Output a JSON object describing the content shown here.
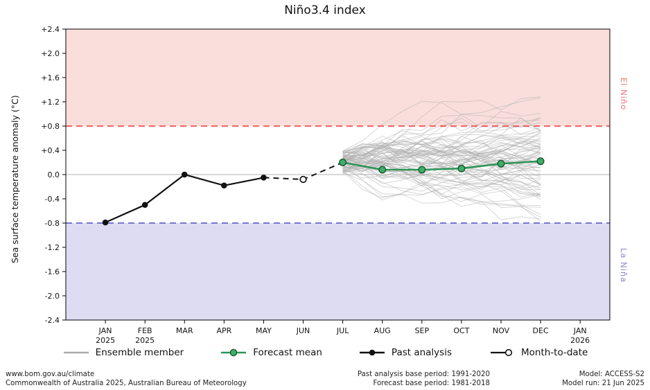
{
  "title": "Niño3.4 index",
  "y_axis_label": "Sea surface temperature anomaly (°C)",
  "region_labels": {
    "el_nino": "El Niño",
    "la_nina": "La Niña"
  },
  "legend": [
    {
      "label": "Ensemble member",
      "type": "ensemble"
    },
    {
      "label": "Forecast mean",
      "type": "forecast"
    },
    {
      "label": "Past analysis",
      "type": "past"
    },
    {
      "label": "Month-to-date",
      "type": "month_to_date"
    }
  ],
  "footer": {
    "left_line1": "www.bom.gov.au/climate",
    "left_line2": "Commonwealth of Australia 2025, Australian Bureau of Meteorology",
    "center_line1": "Past analysis base period: 1991-2020",
    "center_line2": "Forecast base period: 1981-2018",
    "right_line1": "Model: ACCESS-S2",
    "right_line2": "Model run: 21 Jun 2025"
  },
  "chart_data": {
    "type": "line",
    "title": "Niño3.4 index",
    "xlabel": "",
    "ylabel": "Sea surface temperature anomaly (°C)",
    "y_range": [
      -2.4,
      2.4
    ],
    "x_range": [
      -1,
      12.75
    ],
    "grid": false,
    "legend_position": "bottom",
    "thresholds": {
      "el_nino": 0.8,
      "la_nina": -0.8
    },
    "y_ticks": [
      {
        "value": 2.4,
        "label": "+2.4"
      },
      {
        "value": 2.0,
        "label": "+2.0"
      },
      {
        "value": 1.6,
        "label": "+1.6"
      },
      {
        "value": 1.2,
        "label": "+1.2"
      },
      {
        "value": 0.8,
        "label": "+0.8"
      },
      {
        "value": 0.4,
        "label": "+0.4"
      },
      {
        "value": 0.0,
        "label": "0.0"
      },
      {
        "value": -0.4,
        "label": "-0.4"
      },
      {
        "value": -0.8,
        "label": "-0.8"
      },
      {
        "value": -1.2,
        "label": "-1.2"
      },
      {
        "value": -1.6,
        "label": "-1.6"
      },
      {
        "value": -2.0,
        "label": "-2.0"
      },
      {
        "value": -2.4,
        "label": "-2.4"
      }
    ],
    "x_ticks": [
      {
        "x": 0,
        "label": "JAN",
        "year": "2025"
      },
      {
        "x": 1,
        "label": "FEB",
        "year": "2025"
      },
      {
        "x": 2,
        "label": "MAR"
      },
      {
        "x": 3,
        "label": "APR"
      },
      {
        "x": 4,
        "label": "MAY"
      },
      {
        "x": 5,
        "label": "JUN"
      },
      {
        "x": 6,
        "label": "JUL"
      },
      {
        "x": 7,
        "label": "AUG"
      },
      {
        "x": 8,
        "label": "SEP"
      },
      {
        "x": 9,
        "label": "OCT"
      },
      {
        "x": 10,
        "label": "NOV"
      },
      {
        "x": 11,
        "label": "DEC"
      },
      {
        "x": 12,
        "label": "JAN",
        "year": "2026"
      }
    ],
    "series": [
      {
        "name": "Past analysis",
        "type": "past",
        "months": [
          "JAN 2025",
          "FEB 2025",
          "MAR 2025",
          "APR 2025",
          "MAY 2025"
        ],
        "x": [
          0,
          1,
          2,
          3,
          4
        ],
        "values": [
          -0.79,
          -0.5,
          0.0,
          -0.18,
          -0.05
        ]
      },
      {
        "name": "Month-to-date",
        "type": "month_to_date",
        "months": [
          "JUN 2025"
        ],
        "x": [
          5
        ],
        "values": [
          -0.08
        ]
      },
      {
        "name": "Forecast mean",
        "type": "forecast",
        "months": [
          "JUL 2025",
          "AUG 2025",
          "SEP 2025",
          "OCT 2025",
          "NOV 2025",
          "DEC 2025"
        ],
        "x": [
          6,
          7,
          8,
          9,
          10,
          11
        ],
        "values": [
          0.2,
          0.08,
          0.08,
          0.1,
          0.18,
          0.22
        ]
      }
    ],
    "ensemble": {
      "name": "Ensemble member",
      "count": 80,
      "seed": 42,
      "x_start": 6,
      "x_end": 11,
      "start": 0.2,
      "start_spread": 0.38,
      "step": 0.33,
      "min": -1.08,
      "max": 1.38,
      "opacity": 0.5,
      "end_range_approx": [
        -1.0,
        1.35
      ]
    },
    "colors": {
      "past": "#111111",
      "forecast": "#2e9456",
      "forecast_marker": "#3fae68",
      "forecast_marker_edge": "#14532d",
      "ensemble": "#b0b0b0",
      "el_nino_fill": "#fadedb",
      "la_nina_fill": "#dddcf3",
      "el_nino_line": "#f05050",
      "la_nina_line": "#6666cc",
      "zero_line": "#999999",
      "el_nino_label": "#e87878",
      "la_nina_label": "#8888cc"
    }
  }
}
